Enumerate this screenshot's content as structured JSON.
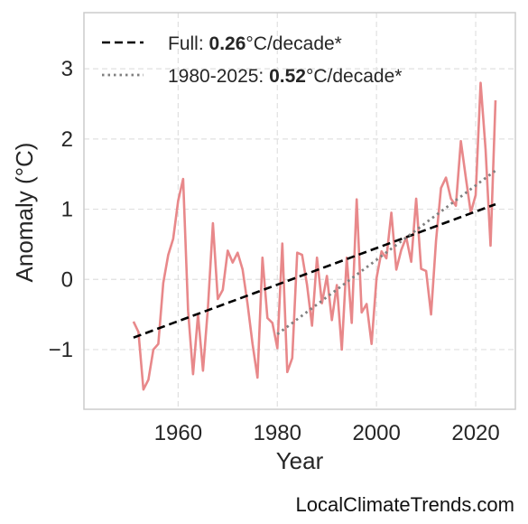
{
  "chart_data": {
    "type": "line",
    "xlabel": "Year",
    "ylabel": "Anomaly (°C)",
    "xlim": [
      1941,
      2028
    ],
    "ylim": [
      -1.85,
      3.8
    ],
    "xticks": [
      1960,
      1980,
      2000,
      2020
    ],
    "yticks": [
      -1,
      0,
      1,
      2,
      3
    ],
    "ytick_labels": [
      "−1",
      "0",
      "1",
      "2",
      "3"
    ],
    "grid": true,
    "legend_position": "top-left",
    "series": [
      {
        "style": "solid",
        "color": "#e8888a",
        "x": [
          1951,
          1952,
          1953,
          1954,
          1955,
          1956,
          1957,
          1958,
          1959,
          1960,
          1961,
          1962,
          1963,
          1964,
          1965,
          1966,
          1967,
          1968,
          1969,
          1970,
          1971,
          1972,
          1973,
          1974,
          1975,
          1976,
          1977,
          1978,
          1979,
          1980,
          1981,
          1982,
          1983,
          1984,
          1985,
          1986,
          1987,
          1988,
          1989,
          1990,
          1991,
          1992,
          1993,
          1994,
          1995,
          1996,
          1997,
          1998,
          1999,
          2000,
          2001,
          2002,
          2003,
          2004,
          2005,
          2006,
          2007,
          2008,
          2009,
          2010,
          2011,
          2012,
          2013,
          2014,
          2015,
          2016,
          2017,
          2018,
          2019,
          2020,
          2021,
          2022,
          2023,
          2024
        ],
        "y": [
          -0.6,
          -0.75,
          -1.57,
          -1.43,
          -1.0,
          -0.92,
          -0.05,
          0.35,
          0.58,
          1.12,
          1.43,
          -0.45,
          -1.35,
          -0.5,
          -1.3,
          -0.4,
          0.8,
          -0.28,
          -0.15,
          0.41,
          0.24,
          0.38,
          0.14,
          -0.35,
          -0.92,
          -1.4,
          0.31,
          -0.55,
          -0.62,
          -0.98,
          0.51,
          -1.32,
          -1.12,
          0.38,
          0.35,
          -0.08,
          -0.66,
          0.31,
          -0.34,
          0.05,
          -0.58,
          -0.08,
          -1.0,
          0.31,
          -0.62,
          1.14,
          -0.47,
          -0.35,
          -0.92,
          0.02,
          0.4,
          0.3,
          0.95,
          0.14,
          0.42,
          0.6,
          0.25,
          1.15,
          0.15,
          0.12,
          -0.5,
          0.55,
          1.3,
          1.45,
          1.15,
          1.05,
          1.97,
          1.45,
          0.95,
          1.2,
          2.8,
          1.85,
          0.48,
          2.55
        ]
      },
      {
        "name": "Full",
        "style": "dashed",
        "color": "#000000",
        "x": [
          1951,
          2024
        ],
        "y": [
          -0.83,
          1.07
        ]
      },
      {
        "name": "1980-2025",
        "style": "dotted",
        "color": "#808080",
        "x": [
          1980,
          2024
        ],
        "y": [
          -0.78,
          1.55
        ]
      }
    ],
    "legend": [
      {
        "series": "Full",
        "prefix": "Full: ",
        "value": "0.26",
        "suffix": "°C/decade*"
      },
      {
        "series": "1980-2025",
        "prefix": "1980-2025: ",
        "value": "0.52",
        "suffix": "°C/decade*"
      }
    ]
  },
  "footer": {
    "watermark": "LocalClimateTrends.com"
  }
}
